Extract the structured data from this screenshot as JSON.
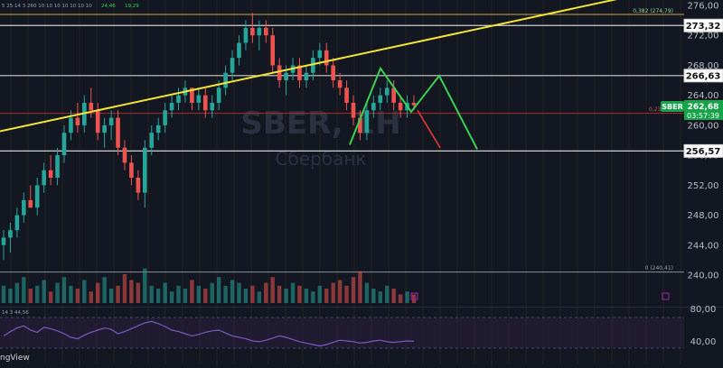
{
  "window": {
    "top_indicator_values": "5 25  14 3  260  10 10  10  10  10  10  10",
    "top_green_a": "24,46",
    "top_green_b": "19,29",
    "rsi_header": "14 3  44,56",
    "footer_brand": "ngView"
  },
  "watermark": {
    "symbol": "SBER, 1H",
    "name": "Сбербанк"
  },
  "price_axis": {
    "ticks": [
      "276,00",
      "272,00",
      "268,00",
      "264,00",
      "260,00",
      "256,00",
      "252,00",
      "248,00",
      "244,00",
      "240,00"
    ],
    "tick_values": [
      276,
      272,
      268,
      264,
      260,
      256,
      252,
      248,
      244,
      240
    ]
  },
  "level_tags": [
    {
      "label": "273,32",
      "value": 273.32
    },
    {
      "label": "266,63",
      "value": 266.63
    },
    {
      "label": "256,57",
      "value": 256.57
    }
  ],
  "fib_labels": {
    "top": "0,382 (274,79)",
    "bottom": "0 (240,41)",
    "mid": "0,23"
  },
  "symbol_tag": {
    "symbol": "SBER",
    "price": "262,68",
    "countdown": "03:57:39"
  },
  "rsi_axis": {
    "ticks": [
      "80,00",
      "40,00"
    ]
  },
  "colors": {
    "background": "#121722",
    "up": "#26a69a",
    "down": "#ef5350",
    "trendline": "#f2e437",
    "projection_up": "#39d353",
    "projection_down": "#e53935",
    "support_line": "#d0d0d0",
    "red_level": "#b02a2a",
    "rsi_line": "#7e57c2",
    "tag_green": "#16a34a"
  },
  "chart_data": {
    "type": "candlestick",
    "symbol": "SBER",
    "ylim": [
      237,
      278
    ],
    "candles": [
      [
        244,
        246,
        242,
        245
      ],
      [
        245,
        247,
        243,
        246
      ],
      [
        246,
        249,
        245,
        248
      ],
      [
        248,
        251,
        247,
        250
      ],
      [
        250,
        252,
        249,
        249
      ],
      [
        249,
        253,
        248,
        252
      ],
      [
        252,
        255,
        251,
        254
      ],
      [
        254,
        256,
        252,
        253
      ],
      [
        253,
        257,
        252,
        256
      ],
      [
        256,
        260,
        255,
        259
      ],
      [
        259,
        262,
        258,
        261
      ],
      [
        261,
        263,
        259,
        260
      ],
      [
        260,
        264,
        259,
        263
      ],
      [
        263,
        265,
        261,
        262
      ],
      [
        262,
        263,
        258,
        259
      ],
      [
        259,
        261,
        257,
        260
      ],
      [
        260,
        262,
        258,
        261
      ],
      [
        261,
        262,
        256,
        257
      ],
      [
        257,
        258,
        254,
        255
      ],
      [
        255,
        256,
        252,
        253
      ],
      [
        253,
        254,
        250,
        251
      ],
      [
        251,
        258,
        249,
        257
      ],
      [
        257,
        260,
        256,
        259
      ],
      [
        259,
        261,
        258,
        260
      ],
      [
        260,
        263,
        259,
        262
      ],
      [
        262,
        264,
        261,
        263
      ],
      [
        263,
        265,
        262,
        264
      ],
      [
        264,
        266,
        263,
        265
      ],
      [
        265,
        265,
        262,
        263
      ],
      [
        263,
        265,
        262,
        264
      ],
      [
        264,
        265,
        261,
        262
      ],
      [
        262,
        264,
        261,
        263
      ],
      [
        263,
        266,
        262,
        265
      ],
      [
        265,
        268,
        264,
        267
      ],
      [
        267,
        270,
        266,
        269
      ],
      [
        269,
        272,
        268,
        271
      ],
      [
        271,
        274,
        270,
        273
      ],
      [
        273,
        275,
        271,
        272
      ],
      [
        272,
        274,
        270,
        273
      ],
      [
        273,
        274,
        271,
        272
      ],
      [
        272,
        273,
        267,
        268
      ],
      [
        268,
        269,
        265,
        266
      ],
      [
        266,
        268,
        264,
        267
      ],
      [
        267,
        269,
        266,
        268
      ],
      [
        268,
        269,
        265,
        266
      ],
      [
        266,
        268,
        265,
        267
      ],
      [
        267,
        270,
        266,
        269
      ],
      [
        269,
        271,
        268,
        270
      ],
      [
        270,
        271,
        267,
        268
      ],
      [
        268,
        269,
        265,
        266
      ],
      [
        266,
        267,
        264,
        265
      ],
      [
        265,
        266,
        262,
        263
      ],
      [
        263,
        264,
        260,
        261
      ],
      [
        261,
        262,
        258,
        259
      ],
      [
        259,
        263,
        258,
        262
      ],
      [
        262,
        264,
        261,
        263
      ],
      [
        263,
        265,
        262,
        264
      ],
      [
        264,
        266,
        263,
        265
      ],
      [
        265,
        266,
        262,
        263
      ],
      [
        263,
        264,
        261,
        262
      ],
      [
        262,
        264,
        261,
        263
      ],
      [
        263,
        264,
        262,
        262.68
      ]
    ],
    "volumes": [
      6,
      5,
      7,
      9,
      5,
      6,
      8,
      4,
      7,
      9,
      6,
      5,
      8,
      4,
      7,
      9,
      5,
      6,
      10,
      8,
      7,
      12,
      6,
      5,
      7,
      4,
      6,
      5,
      8,
      6,
      5,
      7,
      9,
      6,
      8,
      7,
      5,
      6,
      4,
      7,
      9,
      6,
      5,
      7,
      6,
      5,
      4,
      6,
      5,
      7,
      8,
      6,
      9,
      11,
      7,
      5,
      4,
      6,
      5,
      3,
      4,
      3
    ],
    "rsi": [
      52,
      58,
      63,
      66,
      60,
      57,
      64,
      62,
      59,
      55,
      50,
      48,
      53,
      57,
      60,
      63,
      61,
      55,
      58,
      62,
      66,
      70,
      72,
      69,
      65,
      60,
      58,
      55,
      52,
      54,
      57,
      59,
      60,
      56,
      52,
      50,
      48,
      45,
      44,
      46,
      49,
      52,
      50,
      47,
      44,
      42,
      40,
      38,
      40,
      43,
      46,
      45,
      44,
      42,
      43,
      45,
      46,
      44,
      43,
      44,
      45,
      44.56
    ],
    "rsi_ylim": [
      30,
      90
    ],
    "levels": [
      273.32,
      266.63,
      256.57
    ],
    "fib_levels": [
      {
        "label": "0,382",
        "value": 274.79
      },
      {
        "label": "0",
        "value": 240.41
      }
    ],
    "trendline": {
      "from": [
        0,
        259.2
      ],
      "to": [
        60,
        270.8
      ]
    },
    "projection_green": [
      [
        387,
        257.4
      ],
      [
        421,
        267.6
      ],
      [
        455,
        261.8
      ],
      [
        486,
        266.6
      ],
      [
        528,
        256.8
      ]
    ],
    "projection_red": [
      [
        462,
        262.0
      ],
      [
        487,
        257.0
      ]
    ]
  }
}
